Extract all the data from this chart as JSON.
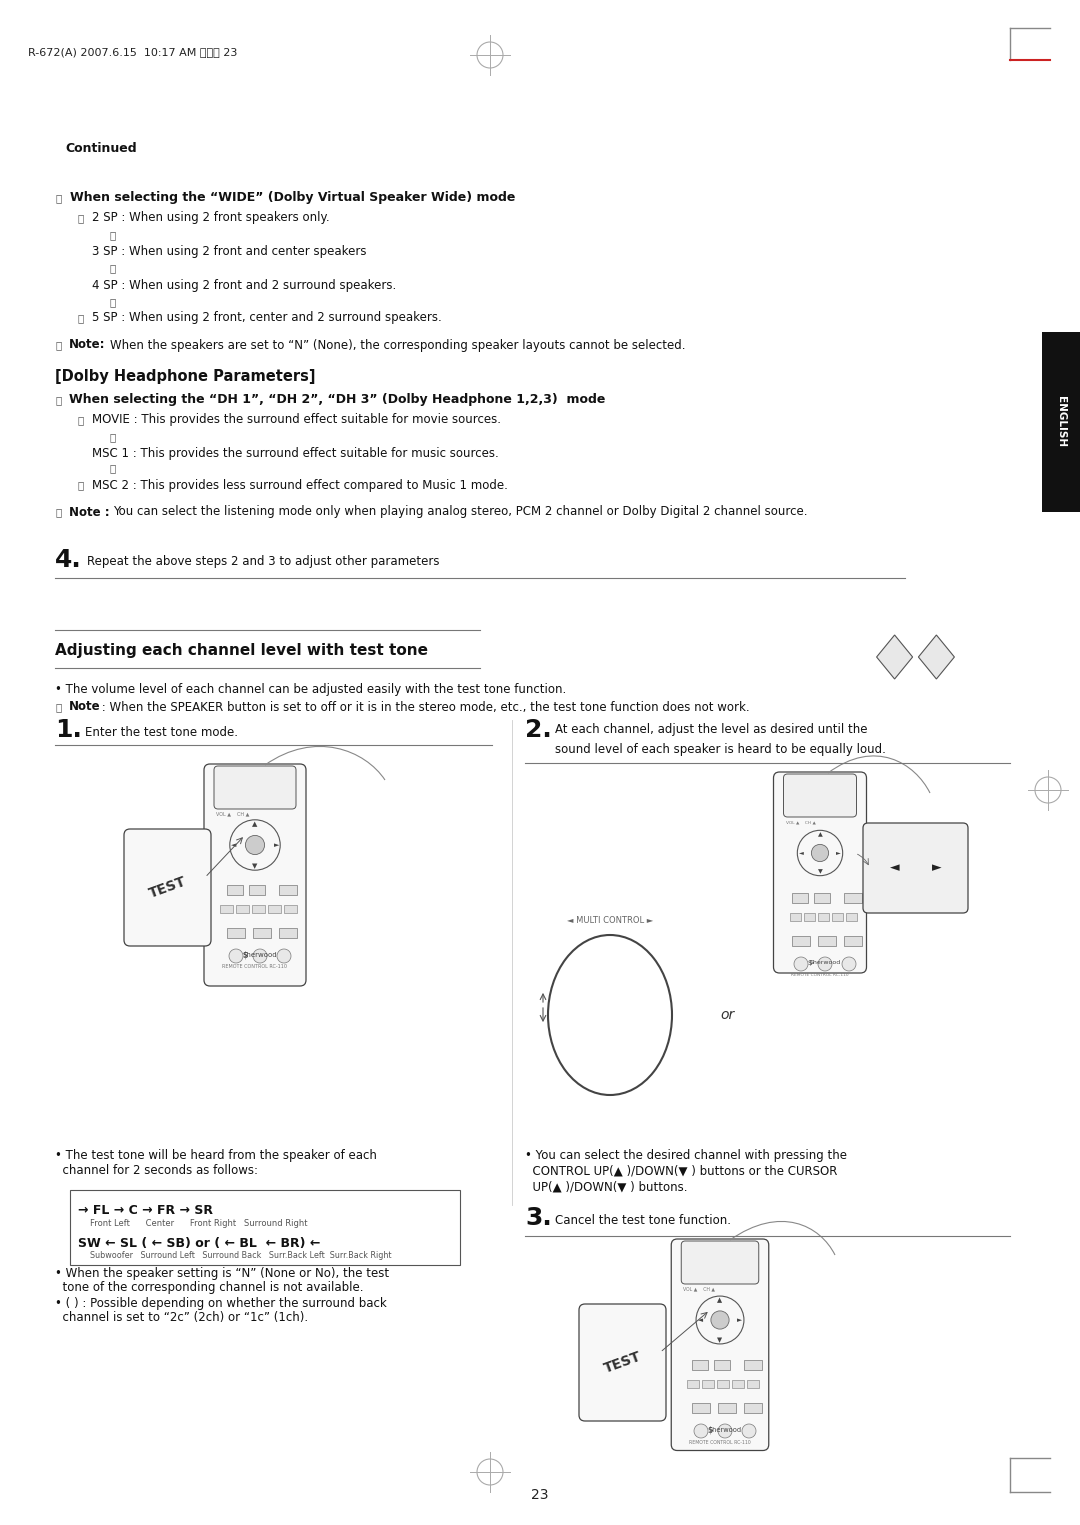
{
  "bg_color": "#ffffff",
  "page_width": 10.8,
  "page_height": 15.25,
  "header_text": "R-672(A) 2007.6.15  10:17 AM 페이지 23",
  "continued_text": "Continued",
  "section1_title": "When selecting the “WIDE” (Dolby Virtual Speaker Wide) mode",
  "note1_bold": "Note:",
  "note1_rest": " When the speakers are set to “N” (None), the corresponding speaker layouts cannot be selected.",
  "dolby_header": "[Dolby Headphone Parameters]",
  "section2_title": "When selecting the “DH 1”, “DH 2”, “DH 3” (Dolby Headphone 1,2,3)  mode",
  "note2_bold": "Note :",
  "note2_rest": " You can select the listening mode only when playing analog stereo, PCM 2 channel or Dolby Digital 2 channel source.",
  "step4_text": "Repeat the above steps 2 and 3 to adjust other parameters",
  "section3_title": "Adjusting each channel level with test tone",
  "bullet1": "• The volume level of each channel can be adjusted easily with the test tone function.",
  "note3_bold": "Note",
  "note3_rest": " : When the SPEAKER button is set to off or it is in the stereo mode, etc., the test tone function does not work.",
  "step1_text": "Enter the test tone mode.",
  "step2_line1": "At each channel, adjust the level as desired until the",
  "step2_line2": "sound level of each speaker is heard to be equally loud.",
  "bullet2a_line1": "• The test tone will be heard from the speaker of each",
  "bullet2a_line2": "  channel for 2 seconds as follows:",
  "flow_line1": "→ FL → C → FR → SR",
  "flow_labels1": "Front Left      Center      Front Right   Surround Right",
  "flow_line2": "SW ← SL ( ← SB) or ( ← BL  ← BR) ←",
  "flow_labels2": "Subwoofer   Surround Left   Surround Back   Surr.Back Left  Surr.Back Right",
  "bullet2b_line1": "• When the speaker setting is “N” (None or No), the test",
  "bullet2b_line2": "  tone of the corresponding channel is not available.",
  "bullet2c_line1": "• ( ) : Possible depending on whether the surround back",
  "bullet2c_line2": "  channel is set to “2c” (2ch) or “1c” (1ch).",
  "bullet3_line1": "• You can select the desired channel with pressing the",
  "bullet3_line2": "  CONTROL UP(▲ )/DOWN(▼ ) buttons or the CURSOR",
  "bullet3_line3": "  UP(▲ )/DOWN(▼ ) buttons.",
  "step3_text": "Cancel the test tone function.",
  "page_num": "23",
  "english_tab": "ENGLISH",
  "or_text": "or",
  "multi_ctrl": "◄ MULTI CONTROL ►",
  "sherwood": "Sherwood",
  "rc_label": "REMOTE CONTROL RC-110"
}
